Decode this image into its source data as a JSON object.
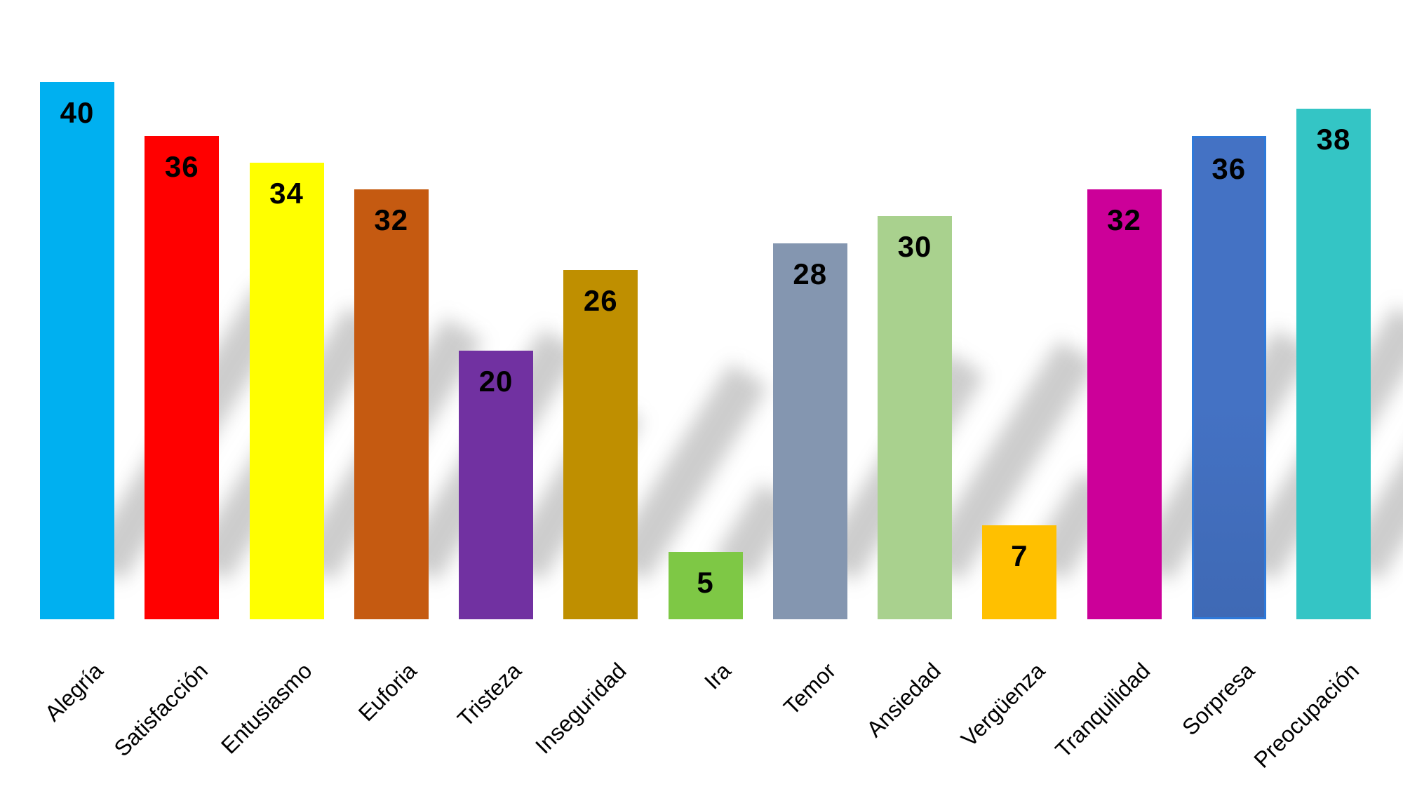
{
  "chart_data": {
    "type": "bar",
    "title": "",
    "xlabel": "",
    "ylabel": "",
    "ylim": [
      0,
      42
    ],
    "grid": false,
    "legend": false,
    "background_color": "#FFFFFF",
    "value_label_color": "#000000",
    "axis_label_color": "#000000",
    "categories": [
      "Alegría",
      "Satisfacción",
      "Entusiasmo",
      "Euforia",
      "Tristeza",
      "Inseguridad",
      "Ira",
      "Temor",
      "Ansiedad",
      "Vergüenza",
      "Tranquilidad",
      "Sorpresa",
      "Preocupación"
    ],
    "values": [
      40,
      36,
      34,
      32,
      20,
      26,
      5,
      28,
      30,
      7,
      32,
      36,
      38
    ],
    "colors": [
      "#00B0F0",
      "#FF0000",
      "#FFFF00",
      "#C55A11",
      "#7131A1",
      "#BF8F00",
      "#7EC845",
      "#8496B0",
      "#A9D18E",
      "#FFC000",
      "#CC0099",
      "#4472C4",
      "#34C5C5"
    ],
    "border_colors": [
      null,
      null,
      null,
      null,
      null,
      null,
      null,
      null,
      null,
      null,
      null,
      "#2E79D9",
      null
    ],
    "notes": "value labels shown in black inside top of each bar; category labels rotated 45 degrees; soft gray perspective shadows cast to the lower-right of each bar"
  }
}
